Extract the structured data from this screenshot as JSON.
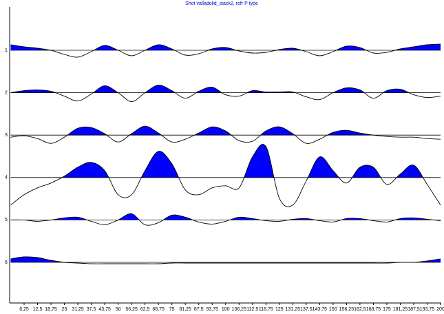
{
  "chart_data": {
    "type": "wiggle",
    "title": "Shot valladolid_stack2, refr P type",
    "x": [
      0,
      6.25,
      12.5,
      18.75,
      25,
      31.25,
      37.5,
      43.75,
      50,
      56.25,
      62.5,
      68.75,
      75,
      81.25,
      87.5,
      93.75,
      100,
      106.25,
      112.5,
      118.75,
      125,
      131.25,
      137.5,
      143.75,
      150,
      156.25,
      162.5,
      168.75,
      175,
      181.25,
      187.5,
      193.75,
      200
    ],
    "xlim": [
      0,
      200
    ],
    "xticks": [
      {
        "value": 6.25,
        "label": "6,25"
      },
      {
        "value": 12.5,
        "label": "12,5"
      },
      {
        "value": 18.75,
        "label": "18,75"
      },
      25,
      {
        "value": 31.25,
        "label": "31,25"
      },
      {
        "value": 37.5,
        "label": "37,5"
      },
      {
        "value": 43.75,
        "label": "43,75"
      },
      50,
      {
        "value": 56.25,
        "label": "56,25"
      },
      {
        "value": 62.5,
        "label": "62,5"
      },
      {
        "value": 68.75,
        "label": "68,75"
      },
      75,
      {
        "value": 81.25,
        "label": "81,25"
      },
      {
        "value": 87.5,
        "label": "87,5"
      },
      {
        "value": 93.75,
        "label": "93,75"
      },
      100,
      {
        "value": 106.25,
        "label": "106,25"
      },
      {
        "value": 112.5,
        "label": "112,5"
      },
      {
        "value": 118.75,
        "label": "118,75"
      },
      125,
      {
        "value": 131.25,
        "label": "131,25"
      },
      {
        "value": 137.5,
        "label": "137,5"
      },
      {
        "value": 143.75,
        "label": "143,75"
      },
      150,
      {
        "value": 156.25,
        "label": "156,25"
      },
      {
        "value": 162.5,
        "label": "162,5"
      },
      {
        "value": 168.75,
        "label": "168,75"
      },
      175,
      {
        "value": 181.25,
        "label": "181,25"
      },
      {
        "value": 187.5,
        "label": "187,5"
      },
      {
        "value": 193.75,
        "label": "193,75"
      },
      200
    ],
    "fill_color": "#0000ff",
    "line_color": "#000000",
    "series": [
      {
        "name": "1",
        "values": [
          8,
          5,
          3,
          0,
          -6,
          -10,
          -2,
          7,
          0,
          -8,
          0,
          8,
          2,
          -7,
          -5,
          2,
          4,
          -1,
          -4,
          -3,
          1,
          3,
          -2,
          -8,
          -2,
          6,
          4,
          -4,
          -3,
          2,
          5,
          8,
          9
        ]
      },
      {
        "name": "2",
        "values": [
          0,
          3,
          4,
          2,
          -5,
          -12,
          -2,
          10,
          0,
          -13,
          0,
          11,
          3,
          -8,
          2,
          8,
          -3,
          -5,
          3,
          1,
          1,
          1,
          -6,
          -10,
          0,
          7,
          4,
          -8,
          3,
          5,
          -3,
          -7,
          -5
        ]
      },
      {
        "name": "3",
        "values": [
          -3,
          -1,
          -5,
          -12,
          -3,
          10,
          11,
          2,
          -10,
          2,
          13,
          3,
          -10,
          -6,
          3,
          12,
          6,
          -8,
          -9,
          6,
          12,
          2,
          -12,
          -6,
          4,
          7,
          3,
          0,
          -2,
          -3,
          -3,
          -5,
          -6
        ]
      },
      {
        "name": "4",
        "values": [
          -40,
          -25,
          -15,
          -8,
          2,
          15,
          22,
          10,
          -25,
          -25,
          10,
          38,
          20,
          -18,
          -25,
          -15,
          -12,
          -15,
          30,
          45,
          -30,
          -40,
          -5,
          30,
          10,
          -8,
          15,
          15,
          -10,
          5,
          18,
          -10,
          -40
        ]
      },
      {
        "name": "5",
        "values": [
          0,
          0,
          -2,
          0,
          3,
          4,
          -2,
          -7,
          0,
          9,
          -7,
          -4,
          7,
          4,
          -3,
          -6,
          -2,
          4,
          2,
          -1,
          -2,
          1,
          2,
          -1,
          -3,
          2,
          2,
          -1,
          -3,
          2,
          3,
          1,
          -1
        ]
      },
      {
        "name": "6",
        "values": [
          5,
          8,
          7,
          3,
          0,
          -1,
          -2,
          -2,
          -2,
          -2,
          -2,
          -2,
          -1,
          -1,
          -1,
          -1,
          -1,
          -1,
          -1,
          -1,
          -1,
          -1,
          -1,
          -1,
          -1,
          -1,
          -1,
          -1,
          -1,
          0,
          0,
          2,
          5
        ]
      }
    ]
  }
}
